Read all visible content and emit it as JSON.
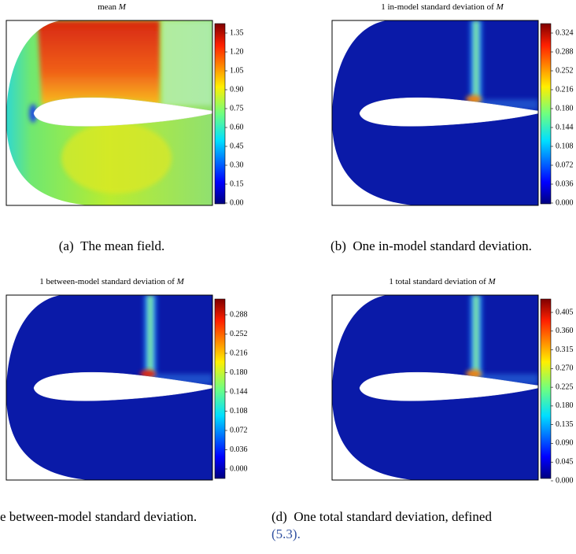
{
  "panels": [
    {
      "title": "mean",
      "title_symbol": "M",
      "colorbar_ticks": [
        "1.35",
        "1.20",
        "1.05",
        "0.90",
        "0.75",
        "0.60",
        "0.45",
        "0.30",
        "0.15",
        "0.00"
      ],
      "caption_label": "(a)",
      "caption_lines": [
        "The mean field."
      ]
    },
    {
      "title": "1 in-model standard deviation of",
      "title_symbol": "M",
      "colorbar_ticks": [
        "0.324",
        "0.288",
        "0.252",
        "0.216",
        "0.180",
        "0.144",
        "0.108",
        "0.072",
        "0.036",
        "0.000"
      ],
      "caption_label": "(b)",
      "caption_lines": [
        "One in-model standard deviation."
      ]
    },
    {
      "title": "1 between-model standard deviation of",
      "title_symbol": "M",
      "colorbar_ticks": [
        "0.288",
        "0.252",
        "0.216",
        "0.180",
        "0.144",
        "0.108",
        "0.072",
        "0.036",
        "0.000"
      ],
      "caption_lines": [
        "e between-model standard deviation."
      ]
    },
    {
      "title": "1 total standard deviation of",
      "title_symbol": "M",
      "colorbar_ticks": [
        "0.405",
        "0.360",
        "0.315",
        "0.270",
        "0.225",
        "0.180",
        "0.135",
        "0.090",
        "0.045",
        "0.000"
      ],
      "caption_label": "(d)",
      "caption_lines": [
        "One total standard deviation, defined",
        "(5.3)."
      ]
    }
  ]
}
